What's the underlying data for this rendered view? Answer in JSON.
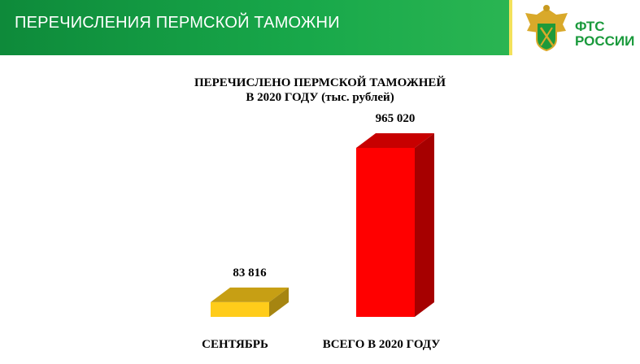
{
  "header": {
    "title": "ПЕРЕЧИСЛЕНИЯ ПЕРМСКОЙ ТАМОЖНИ",
    "logo_text_line1": "ФТС",
    "logo_text_line2": "РОССИИ",
    "accent": "#18a84a"
  },
  "chart_data": {
    "type": "bar",
    "title_line1": "ПЕРЕЧИСЛЕНО ПЕРМСКОЙ ТАМОЖНЕЙ",
    "title_line2": "В  2020 ГОДУ (тыс. рублей)",
    "categories": [
      "СЕНТЯБРЬ",
      "ВСЕГО В  2020 ГОДУ"
    ],
    "values": [
      83816,
      965020
    ],
    "data_labels": [
      "83 816",
      "965 020"
    ],
    "colors": [
      "#ffcc1a",
      "#ff0000"
    ],
    "three_d": true,
    "grid": false
  }
}
